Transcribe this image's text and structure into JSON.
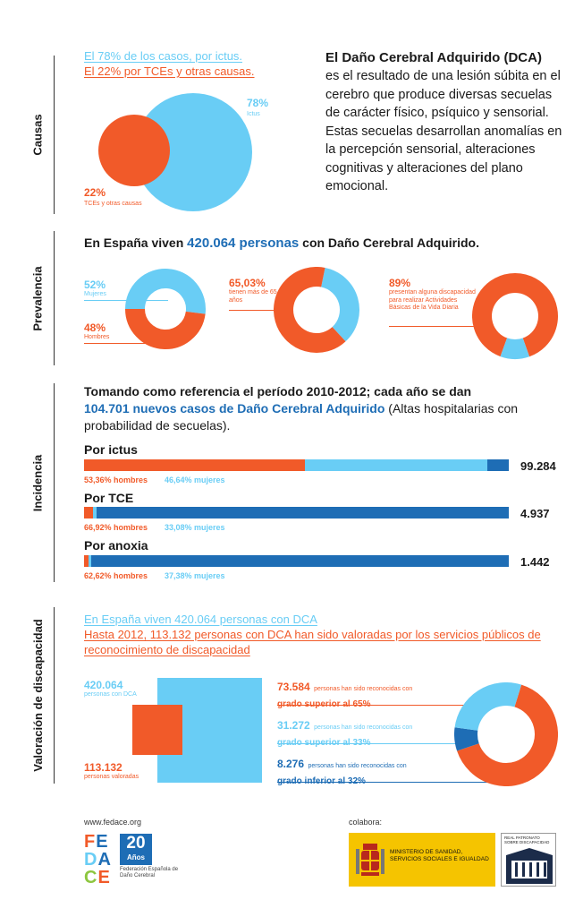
{
  "causas": {
    "section_label": "Causas",
    "line1": "El 78% de los casos, por ictus.",
    "line2": "El 22% por TCEs y otras causas.",
    "ictus_pct": "78%",
    "ictus_label": "Ictus",
    "tce_pct": "22%",
    "tce_label": "TCEs y otras causas",
    "title": "El Daño Cerebral Adquirido (DCA)",
    "body": "es el resultado de una lesión súbita en el cerebro que produce diversas secuelas de carácter físico, psíquico y sensorial. Estas secuelas desarrollan anomalías en la percepción sensorial, alteraciones cognitivas y alteraciones del plano emocional."
  },
  "prevalencia": {
    "section_label": "Prevalencia",
    "head_pre": "En España viven ",
    "head_num": "420.064 personas",
    "head_post": " con Daño Cerebral Adquirido.",
    "women_pct": "52%",
    "women_label": "Mujeres",
    "men_pct": "48%",
    "men_label": "Hombres",
    "age_pct": "65,03%",
    "age_label": "tienen más de 65 años",
    "disab_pct": "89%",
    "disab_label": "presentan alguna discapacidad para realizar Actividades Básicas de la Vida Diaria",
    "values": {
      "women": 52,
      "men": 48,
      "over65": 65.03,
      "disability": 89
    }
  },
  "incidencia": {
    "section_label": "Incidencia",
    "head_line1": "Tomando como referencia el período 2010-2012; cada año se dan",
    "head_num": "104.701 nuevos casos de Daño Cerebral Adquirido",
    "head_post": " (Altas hospitalarias con probabilidad de secuelas).",
    "ictus": {
      "label": "Por ictus",
      "total": "99.284",
      "men": "53,36% hombres",
      "women": "46,64% mujeres"
    },
    "tce": {
      "label": "Por TCE",
      "total": "4.937",
      "men": "66,92% hombres",
      "women": "33,08% mujeres"
    },
    "anoxia": {
      "label": "Por anoxia",
      "total": "1.442",
      "men": "62,62% hombres",
      "women": "37,38% mujeres"
    }
  },
  "valoracion": {
    "section_label": "Valoración de discapacidad",
    "line1": "En España viven 420.064 personas con DCA",
    "line2": "Hasta 2012, 113.132 personas con DCA han sido valoradas por los servicios públicos de reconocimiento de discapacidad",
    "total_num": "420.064",
    "total_label": "personas con DCA",
    "valued_num": "113.132",
    "valued_label": "personas valoradas",
    "g1_num": "73.584",
    "g1_small": "personas han sido reconocidas con",
    "g1_grade": "grado superior al 65%",
    "g2_num": "31.272",
    "g2_small": "personas han sido reconocidas con",
    "g2_grade": "grado superior al 33%",
    "g3_num": "8.276",
    "g3_small": "personas han sido reconocidas con",
    "g3_grade": "grado inferior al 32%",
    "values": {
      "over65": 73584,
      "over33": 31272,
      "under32": 8276
    }
  },
  "footer": {
    "website": "www.fedace.org",
    "logo_letters": [
      "FE",
      "DA",
      "CE"
    ],
    "logo_20": "20",
    "logo_anos": "Años",
    "logo_sub": "Federación Española de Daño Cerebral",
    "colabora": "colabora:",
    "ministerio": "MINISTERIO DE SANIDAD, SERVICIOS SOCIALES E IGUALDAD",
    "patronato": "REAL PATRONATO SOBRE DISCAPACIDAD"
  },
  "colors": {
    "orange": "#f15a29",
    "light_blue": "#69cdf5",
    "dark_blue": "#1e6db5"
  }
}
